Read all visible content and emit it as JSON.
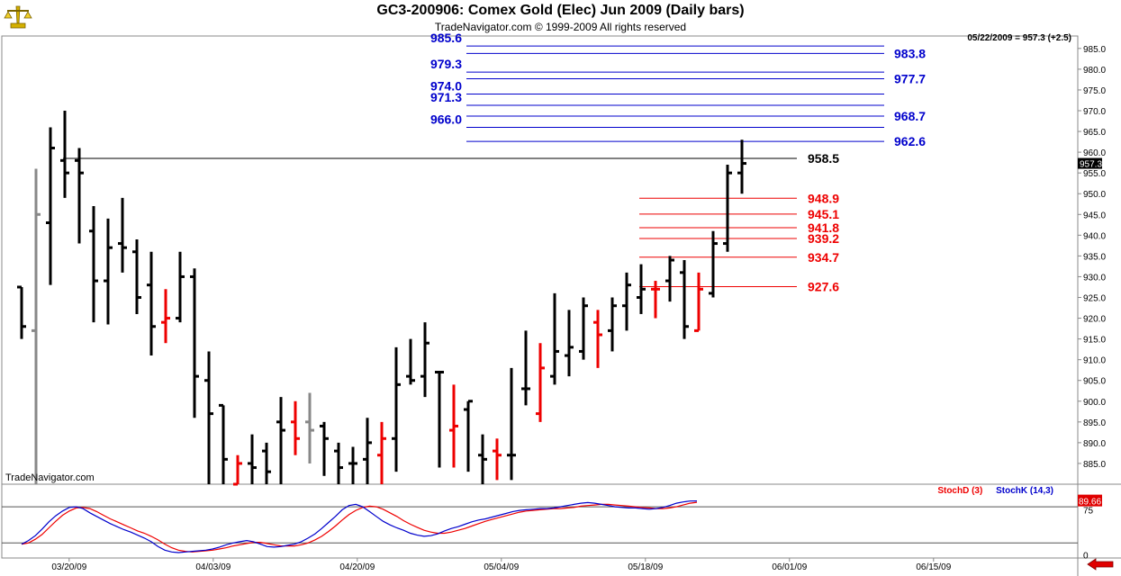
{
  "header": {
    "title": "GC3-200906:  Comex Gold (Elec) Jun 2009  (Daily bars)",
    "subtitle": "TradeNavigator.com © 1999-2009 All rights reserved",
    "last_info": "05/22/2009 = 957.3 (+2.5)",
    "watermark": "TradeNavigator.com"
  },
  "indicator_legend": {
    "stoch_d": "StochD (3)",
    "stoch_k": "StochK (14,3)"
  },
  "colors": {
    "up_fib": "#0000cc",
    "down_fib": "#ee0000",
    "bar_black": "#000000",
    "bar_red": "#ee0000",
    "bar_gray": "#888888",
    "stoch_k": "#0000cc",
    "stoch_d": "#ee0000"
  },
  "icons": {
    "logo": "gold-scale-icon",
    "back": "left-arrow-icon"
  },
  "chart_data": {
    "type": "ohlc",
    "title": "GC3-200906:  Comex Gold (Elec) Jun 2009  (Daily bars)",
    "ylim": [
      880,
      988
    ],
    "y_ticks": [
      885.0,
      890.0,
      895.0,
      900.0,
      905.0,
      910.0,
      915.0,
      920.0,
      925.0,
      930.0,
      935.0,
      940.0,
      945.0,
      950.0,
      955.0,
      960.0,
      965.0,
      970.0,
      975.0,
      980.0,
      985.0
    ],
    "x_ticks": [
      "03/20/09",
      "04/03/09",
      "04/20/09",
      "05/04/09",
      "05/18/09",
      "06/01/09",
      "06/15/09"
    ],
    "x_tick_pos": [
      3.3,
      13.3,
      23.3,
      33.3,
      43.3,
      53.3,
      63.3
    ],
    "last_price": "957.3",
    "bars": [
      {
        "i": 0,
        "o": 927.5,
        "h": 927.5,
        "l": 915,
        "c": 918,
        "col": "black"
      },
      {
        "i": 1,
        "o": 917,
        "h": 956,
        "l": 880,
        "c": 945,
        "col": "gray"
      },
      {
        "i": 2,
        "o": 943,
        "h": 966,
        "l": 928,
        "c": 961,
        "col": "black"
      },
      {
        "i": 3,
        "o": 958,
        "h": 970,
        "l": 949,
        "c": 955,
        "col": "black"
      },
      {
        "i": 4,
        "o": 958,
        "h": 961,
        "l": 938,
        "c": 955,
        "col": "black"
      },
      {
        "i": 5,
        "o": 941,
        "h": 947,
        "l": 919,
        "c": 929,
        "col": "black"
      },
      {
        "i": 6,
        "o": 929,
        "h": 944,
        "l": 918.5,
        "c": 937,
        "col": "black"
      },
      {
        "i": 7,
        "o": 938,
        "h": 949,
        "l": 931,
        "c": 937,
        "col": "black"
      },
      {
        "i": 8,
        "o": 936,
        "h": 939,
        "l": 921,
        "c": 925,
        "col": "black"
      },
      {
        "i": 9,
        "o": 928,
        "h": 936,
        "l": 911,
        "c": 918,
        "col": "black"
      },
      {
        "i": 10,
        "o": 919,
        "h": 927,
        "l": 914,
        "c": 920,
        "col": "red"
      },
      {
        "i": 11,
        "o": 920,
        "h": 936,
        "l": 919,
        "c": 930,
        "col": "black"
      },
      {
        "i": 12,
        "o": 930,
        "h": 932,
        "l": 896,
        "c": 906,
        "col": "black"
      },
      {
        "i": 13,
        "o": 905,
        "h": 912,
        "l": 880,
        "c": 897,
        "col": "black"
      },
      {
        "i": 14,
        "o": 899,
        "h": 899,
        "l": 880,
        "c": 886,
        "col": "black"
      },
      {
        "i": 15,
        "o": 880,
        "h": 887,
        "l": 880,
        "c": 885,
        "col": "red"
      },
      {
        "i": 16,
        "o": 885,
        "h": 892,
        "l": 880,
        "c": 884,
        "col": "black"
      },
      {
        "i": 17,
        "o": 888,
        "h": 890,
        "l": 880,
        "c": 883,
        "col": "black"
      },
      {
        "i": 18,
        "o": 895,
        "h": 901,
        "l": 880,
        "c": 893,
        "col": "black"
      },
      {
        "i": 19,
        "o": 895,
        "h": 900,
        "l": 887,
        "c": 891,
        "col": "red"
      },
      {
        "i": 20,
        "o": 895,
        "h": 902,
        "l": 885,
        "c": 893,
        "col": "gray"
      },
      {
        "i": 21,
        "o": 894,
        "h": 895,
        "l": 882,
        "c": 891,
        "col": "black"
      },
      {
        "i": 22,
        "o": 888,
        "h": 890,
        "l": 880,
        "c": 884,
        "col": "black"
      },
      {
        "i": 23,
        "o": 885,
        "h": 889,
        "l": 880,
        "c": 885,
        "col": "black"
      },
      {
        "i": 24,
        "o": 886,
        "h": 896,
        "l": 880,
        "c": 890,
        "col": "black"
      },
      {
        "i": 25,
        "o": 887,
        "h": 895,
        "l": 880,
        "c": 891,
        "col": "red"
      },
      {
        "i": 26,
        "o": 891,
        "h": 913,
        "l": 883,
        "c": 904,
        "col": "black"
      },
      {
        "i": 27,
        "o": 906,
        "h": 915,
        "l": 904,
        "c": 905,
        "col": "black"
      },
      {
        "i": 28,
        "o": 906,
        "h": 919,
        "l": 901,
        "c": 914,
        "col": "black"
      },
      {
        "i": 29,
        "o": 907,
        "h": 907,
        "l": 884,
        "c": 907,
        "col": "black"
      },
      {
        "i": 30,
        "o": 893,
        "h": 904,
        "l": 884,
        "c": 894,
        "col": "red"
      },
      {
        "i": 31,
        "o": 898,
        "h": 900,
        "l": 883,
        "c": 900,
        "col": "black"
      },
      {
        "i": 32,
        "o": 887,
        "h": 892,
        "l": 880,
        "c": 886,
        "col": "black"
      },
      {
        "i": 33,
        "o": 888,
        "h": 891,
        "l": 881,
        "c": 887,
        "col": "red"
      },
      {
        "i": 34,
        "o": 887,
        "h": 908,
        "l": 881,
        "c": 887,
        "col": "black"
      },
      {
        "i": 35,
        "o": 903,
        "h": 917,
        "l": 899,
        "c": 903,
        "col": "black"
      },
      {
        "i": 36,
        "o": 897,
        "h": 914,
        "l": 895,
        "c": 908,
        "col": "red"
      },
      {
        "i": 37,
        "o": 906,
        "h": 926,
        "l": 904,
        "c": 912,
        "col": "black"
      },
      {
        "i": 38,
        "o": 911,
        "h": 922,
        "l": 906,
        "c": 913,
        "col": "black"
      },
      {
        "i": 39,
        "o": 912,
        "h": 925,
        "l": 910,
        "c": 923,
        "col": "black"
      },
      {
        "i": 40,
        "o": 919,
        "h": 922,
        "l": 908,
        "c": 916,
        "col": "red"
      },
      {
        "i": 41,
        "o": 917,
        "h": 925,
        "l": 912,
        "c": 923,
        "col": "black"
      },
      {
        "i": 42,
        "o": 923,
        "h": 931,
        "l": 917,
        "c": 928,
        "col": "black"
      },
      {
        "i": 43,
        "o": 925,
        "h": 933,
        "l": 921,
        "c": 927,
        "col": "black"
      },
      {
        "i": 44,
        "o": 927,
        "h": 929,
        "l": 920,
        "c": 927,
        "col": "red"
      },
      {
        "i": 45,
        "o": 929,
        "h": 935,
        "l": 924,
        "c": 934,
        "col": "black"
      },
      {
        "i": 46,
        "o": 931,
        "h": 934,
        "l": 915,
        "c": 918,
        "col": "black"
      },
      {
        "i": 47,
        "o": 917,
        "h": 931,
        "l": 917,
        "c": 927,
        "col": "red"
      },
      {
        "i": 48,
        "o": 926,
        "h": 941,
        "l": 925,
        "c": 938,
        "col": "black"
      },
      {
        "i": 49,
        "o": 938,
        "h": 957,
        "l": 936,
        "c": 955,
        "col": "black"
      },
      {
        "i": 50,
        "o": 955,
        "h": 963,
        "l": 950,
        "c": 957.3,
        "col": "black"
      }
    ],
    "hlines": [
      {
        "value": 985.6,
        "label": "985.6",
        "side": "left",
        "color": "blue"
      },
      {
        "value": 983.8,
        "label": "983.8",
        "side": "right",
        "color": "blue"
      },
      {
        "value": 979.3,
        "label": "979.3",
        "side": "left",
        "color": "blue"
      },
      {
        "value": 977.7,
        "label": "977.7",
        "side": "right",
        "color": "blue"
      },
      {
        "value": 974.0,
        "label": "974.0",
        "side": "left",
        "color": "blue"
      },
      {
        "value": 971.3,
        "label": "971.3",
        "side": "left",
        "color": "blue"
      },
      {
        "value": 968.7,
        "label": "968.7",
        "side": "right",
        "color": "blue"
      },
      {
        "value": 966.0,
        "label": "966.0",
        "side": "left",
        "color": "blue"
      },
      {
        "value": 962.6,
        "label": "962.6",
        "side": "right",
        "color": "blue"
      },
      {
        "value": 958.5,
        "label": "958.5",
        "side": "right",
        "color": "black"
      },
      {
        "value": 948.9,
        "label": "948.9",
        "side": "right",
        "color": "red"
      },
      {
        "value": 945.1,
        "label": "945.1",
        "side": "right",
        "color": "red"
      },
      {
        "value": 941.8,
        "label": "941.8",
        "side": "right",
        "color": "red"
      },
      {
        "value": 939.2,
        "label": "939.2",
        "side": "right",
        "color": "red"
      },
      {
        "value": 934.7,
        "label": "934.7",
        "side": "right",
        "color": "red"
      },
      {
        "value": 927.6,
        "label": "927.6",
        "side": "right",
        "color": "red"
      }
    ],
    "stoch": {
      "ylim": [
        -5,
        110
      ],
      "y_ticks": [
        0,
        75
      ],
      "ref_levels": [
        20,
        80
      ],
      "last_value": "89.66",
      "k": [
        18,
        24,
        32,
        43,
        55,
        65,
        73,
        79,
        80,
        77,
        70,
        64,
        58,
        52,
        47,
        42,
        38,
        33,
        28,
        22,
        14,
        8,
        5,
        4,
        5,
        6,
        7,
        8,
        10,
        13,
        17,
        20,
        22,
        24,
        22,
        18,
        14,
        13,
        14,
        16,
        18,
        22,
        28,
        35,
        44,
        54,
        64,
        75,
        82,
        84,
        80,
        72,
        64,
        56,
        50,
        45,
        41,
        36,
        33,
        31,
        32,
        35,
        40,
        44,
        47,
        51,
        55,
        58,
        60,
        63,
        66,
        69,
        72,
        74,
        75,
        76,
        77,
        77,
        78,
        80,
        82,
        84,
        86,
        87,
        86,
        84,
        82,
        80,
        79,
        78,
        78,
        77,
        76,
        77,
        79,
        82,
        86,
        88,
        89.5,
        89.7
      ],
      "d": [
        18,
        20,
        26,
        34,
        45,
        56,
        66,
        73,
        78,
        79,
        77,
        72,
        66,
        60,
        55,
        50,
        45,
        40,
        36,
        31,
        25,
        18,
        12,
        8,
        6,
        5,
        6,
        7,
        8,
        10,
        12,
        15,
        17,
        19,
        21,
        21,
        19,
        17,
        15,
        15,
        15,
        17,
        20,
        25,
        31,
        39,
        48,
        58,
        67,
        74,
        79,
        81,
        80,
        76,
        70,
        64,
        57,
        51,
        46,
        41,
        38,
        36,
        36,
        38,
        41,
        44,
        48,
        52,
        56,
        59,
        62,
        65,
        68,
        71,
        73,
        74,
        75,
        76,
        77,
        77,
        78,
        79,
        81,
        82,
        83,
        84,
        84,
        83,
        82,
        81,
        80,
        79,
        78,
        77,
        77,
        78,
        80,
        83,
        86,
        87.5
      ]
    }
  }
}
